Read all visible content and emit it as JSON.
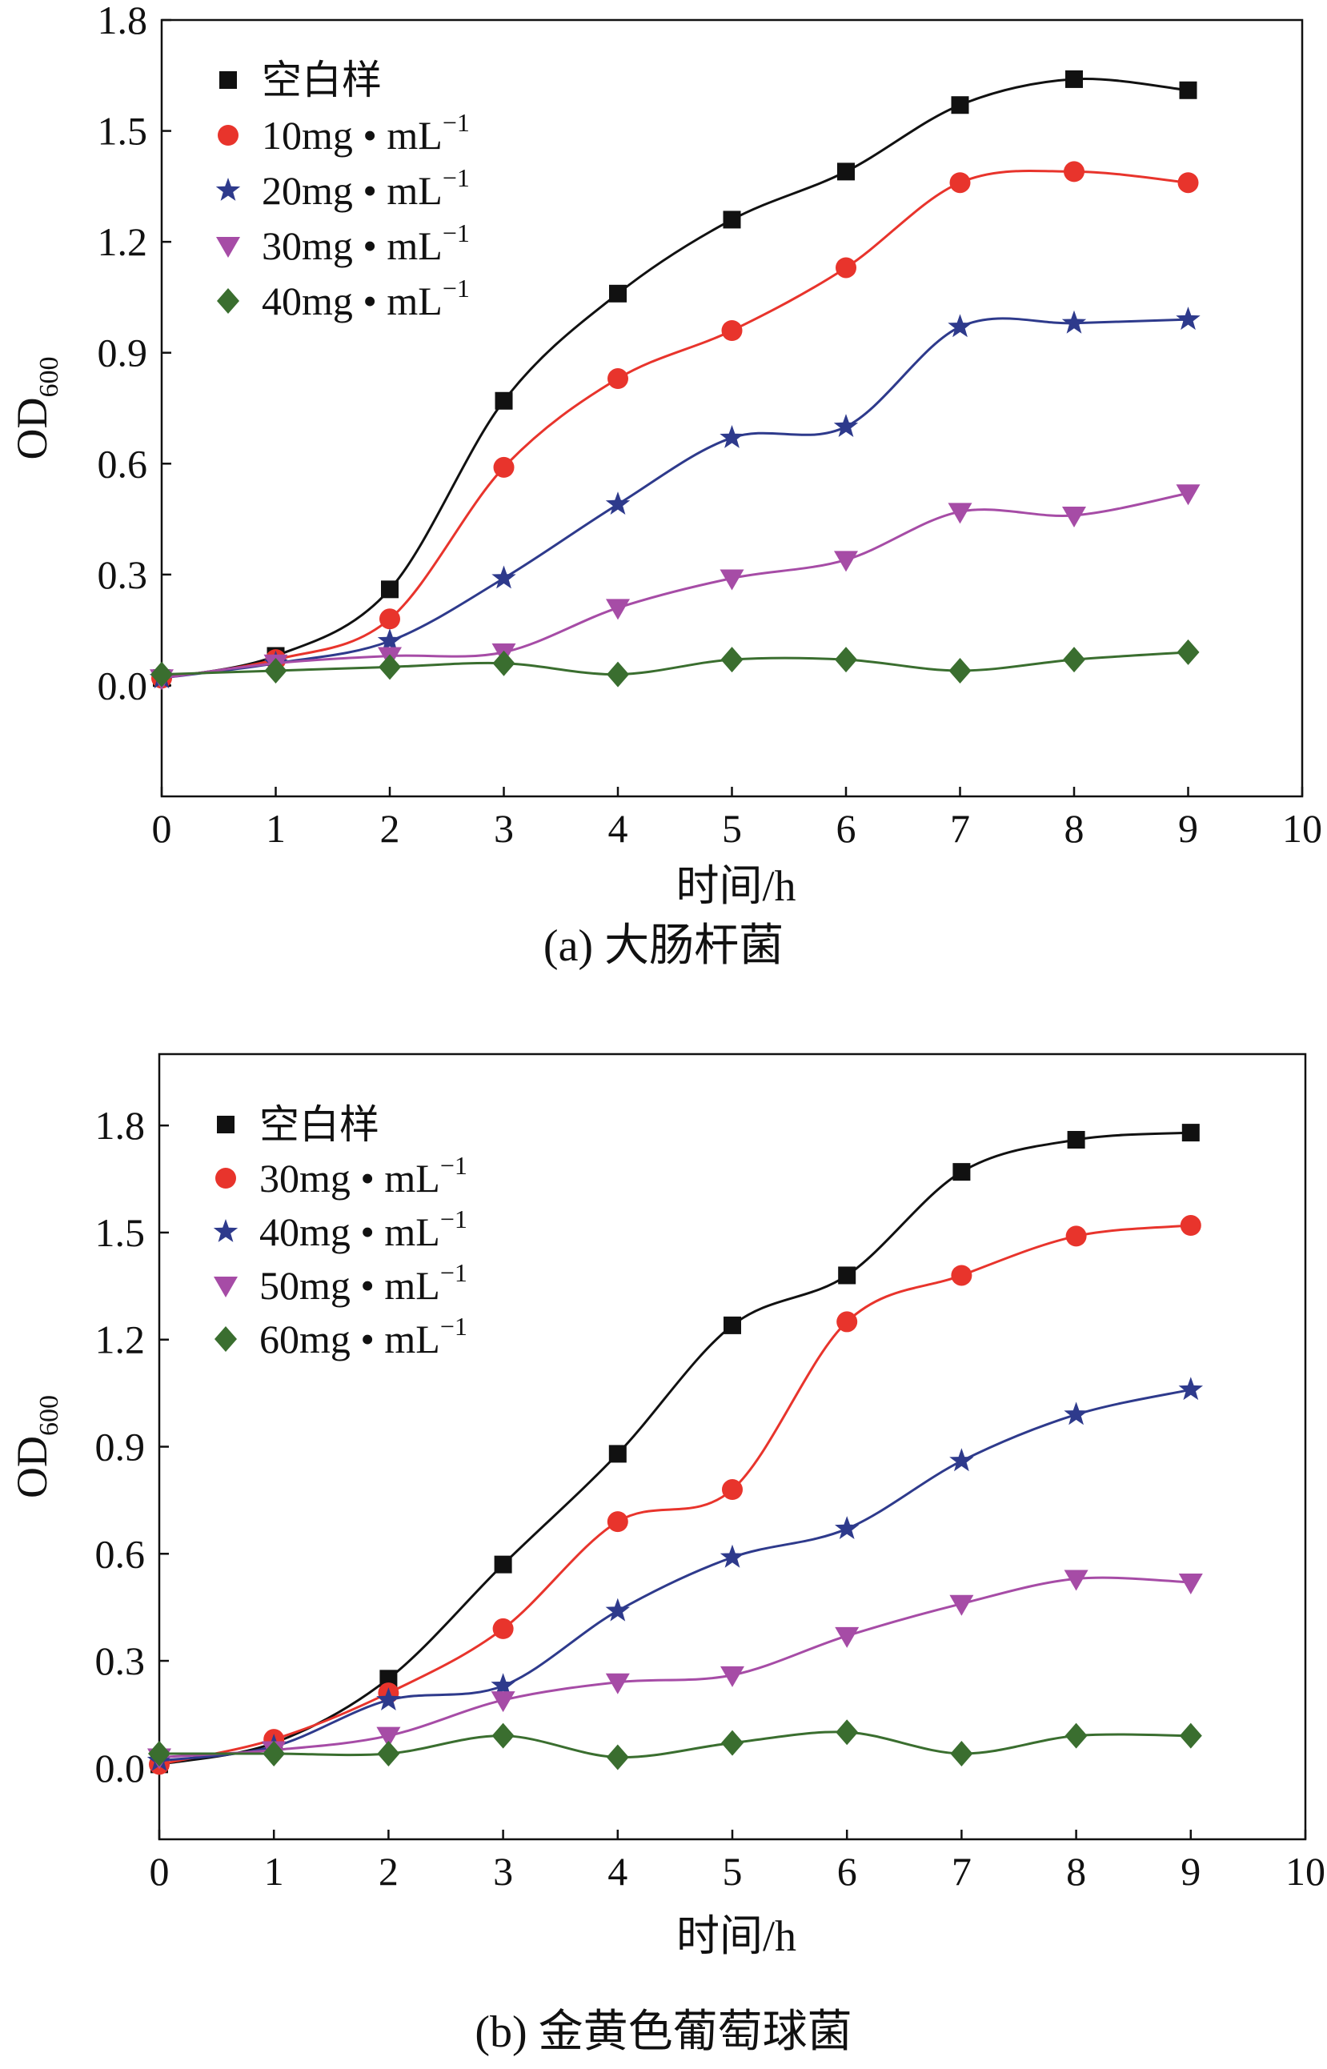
{
  "chart_data": [
    {
      "type": "line",
      "caption": "(a) 大肠杆菌",
      "xlabel": "时间/h",
      "ylabel_main": "OD",
      "ylabel_sub": "600",
      "xlim": [
        0,
        10
      ],
      "ylim": [
        -0.3,
        1.8
      ],
      "xticks": [
        0,
        1,
        2,
        3,
        4,
        5,
        6,
        7,
        8,
        9,
        10
      ],
      "xtick_labels": [
        "0",
        "1",
        "2",
        "3",
        "4",
        "5",
        "6",
        "7",
        "8",
        "9",
        "10"
      ],
      "yticks": [
        0.0,
        0.3,
        0.6,
        0.9,
        1.2,
        1.5,
        1.8
      ],
      "ytick_labels": [
        "0.0",
        "0.3",
        "0.6",
        "0.9",
        "1.2",
        "1.5",
        "1.8"
      ],
      "legend_position": "top-left",
      "x": [
        0,
        1,
        2,
        3,
        4,
        5,
        6,
        7,
        8,
        9
      ],
      "series": [
        {
          "name": "空白样",
          "legend_main": "空白样",
          "legend_sup": "",
          "marker": "square",
          "color": "#111111",
          "values": [
            0.02,
            0.08,
            0.26,
            0.77,
            1.06,
            1.26,
            1.39,
            1.57,
            1.64,
            1.61
          ]
        },
        {
          "name": "10mg • mL-1",
          "legend_main": "10mg • mL",
          "legend_sup": "−1",
          "marker": "circle",
          "color": "#e8342c",
          "values": [
            0.02,
            0.07,
            0.18,
            0.59,
            0.83,
            0.96,
            1.13,
            1.36,
            1.39,
            1.36
          ]
        },
        {
          "name": "20mg • mL-1",
          "legend_main": "20mg • mL",
          "legend_sup": "−1",
          "marker": "star",
          "color": "#2e3a8c",
          "values": [
            0.02,
            0.06,
            0.12,
            0.29,
            0.49,
            0.67,
            0.7,
            0.97,
            0.98,
            0.99
          ]
        },
        {
          "name": "30mg • mL-1",
          "legend_main": "30mg • mL",
          "legend_sup": "−1",
          "marker": "triangle-down",
          "color": "#a64ca6",
          "values": [
            0.02,
            0.06,
            0.08,
            0.09,
            0.21,
            0.29,
            0.34,
            0.47,
            0.46,
            0.52
          ]
        },
        {
          "name": "40mg • mL-1",
          "legend_main": "40mg • mL",
          "legend_sup": "−1",
          "marker": "diamond",
          "color": "#3a6e2f",
          "values": [
            0.03,
            0.04,
            0.05,
            0.06,
            0.03,
            0.07,
            0.07,
            0.04,
            0.07,
            0.09
          ]
        }
      ]
    },
    {
      "type": "line",
      "caption": "(b) 金黄色葡萄球菌",
      "xlabel": "时间/h",
      "ylabel_main": "OD",
      "ylabel_sub": "600",
      "xlim": [
        0,
        10
      ],
      "ylim": [
        -0.2,
        2.0
      ],
      "xticks": [
        0,
        1,
        2,
        3,
        4,
        5,
        6,
        7,
        8,
        9,
        10
      ],
      "xtick_labels": [
        "0",
        "1",
        "2",
        "3",
        "4",
        "5",
        "6",
        "7",
        "8",
        "9",
        "10"
      ],
      "yticks": [
        0.0,
        0.3,
        0.6,
        0.9,
        1.2,
        1.5,
        1.8
      ],
      "ytick_labels": [
        "0.0",
        "0.3",
        "0.6",
        "0.9",
        "1.2",
        "1.5",
        "1.8"
      ],
      "legend_position": "top-left",
      "x": [
        0,
        1,
        2,
        3,
        4,
        5,
        6,
        7,
        8,
        9
      ],
      "series": [
        {
          "name": "空白样",
          "legend_main": "空白样",
          "legend_sup": "",
          "marker": "square",
          "color": "#111111",
          "values": [
            0.01,
            0.07,
            0.25,
            0.57,
            0.88,
            1.24,
            1.38,
            1.67,
            1.76,
            1.78
          ]
        },
        {
          "name": "30mg • mL-1",
          "legend_main": "30mg • mL",
          "legend_sup": "−1",
          "marker": "circle",
          "color": "#e8342c",
          "values": [
            0.01,
            0.08,
            0.21,
            0.39,
            0.69,
            0.78,
            1.25,
            1.38,
            1.49,
            1.52
          ]
        },
        {
          "name": "40mg • mL-1",
          "legend_main": "40mg • mL",
          "legend_sup": "−1",
          "marker": "star",
          "color": "#2e3a8c",
          "values": [
            0.02,
            0.06,
            0.19,
            0.23,
            0.44,
            0.59,
            0.67,
            0.86,
            0.99,
            1.06
          ]
        },
        {
          "name": "50mg • mL-1",
          "legend_main": "50mg • mL",
          "legend_sup": "−1",
          "marker": "triangle-down",
          "color": "#a64ca6",
          "values": [
            0.03,
            0.05,
            0.09,
            0.19,
            0.24,
            0.26,
            0.37,
            0.46,
            0.53,
            0.52
          ]
        },
        {
          "name": "60mg • mL-1",
          "legend_main": "60mg • mL",
          "legend_sup": "−1",
          "marker": "diamond",
          "color": "#3a6e2f",
          "values": [
            0.04,
            0.04,
            0.04,
            0.09,
            0.03,
            0.07,
            0.1,
            0.04,
            0.09,
            0.09
          ]
        }
      ]
    }
  ]
}
